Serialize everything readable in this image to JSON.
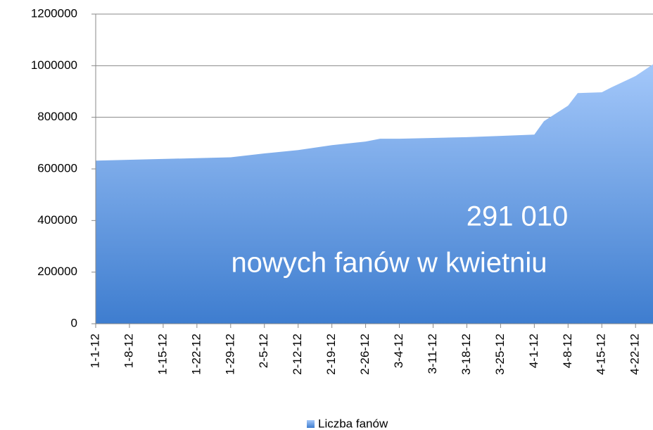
{
  "chart_data": {
    "type": "area",
    "x": [
      "1-1-12",
      "1-29-12",
      "2-5-12",
      "2-12-12",
      "2-19-12",
      "2-26-12",
      "2-29-12",
      "3-4-12",
      "3-11-12",
      "3-18-12",
      "3-25-12",
      "4-1-12",
      "4-3-12",
      "4-8-12",
      "4-10-12",
      "4-15-12",
      "4-17-12",
      "4-22-12",
      "4-26-12"
    ],
    "series": [
      {
        "name": "Liczba fanów",
        "color": "#5b93e0",
        "values": [
          632000,
          645000,
          660000,
          673000,
          692000,
          706000,
          717000,
          717000,
          720000,
          723000,
          728000,
          733000,
          785000,
          845000,
          894000,
          897000,
          916000,
          960000,
          1010000
        ]
      }
    ],
    "xticks": [
      "1-1-12",
      "1-8-12",
      "1-15-12",
      "1-22-12",
      "1-29-12",
      "2-5-12",
      "2-12-12",
      "2-19-12",
      "2-26-12",
      "3-4-12",
      "3-11-12",
      "3-18-12",
      "3-25-12",
      "4-1-12",
      "4-8-12",
      "4-15-12",
      "4-22-12"
    ],
    "ylim": [
      0,
      1200000
    ],
    "yticks": [
      0,
      200000,
      400000,
      600000,
      800000,
      1000000,
      1200000
    ],
    "grid": true,
    "annotations": [
      "291 010",
      "nowych fanów w kwietniu"
    ],
    "legend": "bottom"
  }
}
